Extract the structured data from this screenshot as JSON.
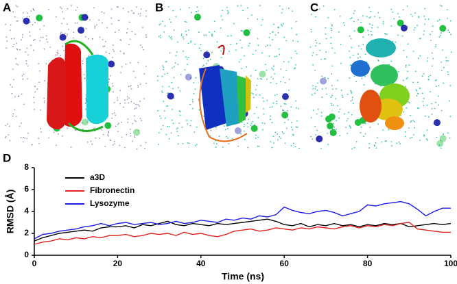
{
  "panel_labels": [
    "A",
    "B",
    "C",
    "D"
  ],
  "chart_data": {
    "type": "line",
    "x_label": "Time (ns)",
    "y_label": "RMSD (Å)",
    "x": [
      0,
      2,
      4,
      6,
      8,
      10,
      12,
      14,
      16,
      18,
      20,
      22,
      24,
      26,
      28,
      30,
      32,
      34,
      36,
      38,
      40,
      42,
      44,
      46,
      48,
      50,
      52,
      54,
      56,
      58,
      60,
      62,
      64,
      66,
      68,
      70,
      72,
      74,
      76,
      78,
      80,
      82,
      84,
      86,
      88,
      90,
      92,
      94,
      96,
      98,
      100
    ],
    "series": [
      {
        "name": "a3D",
        "color": "#000000",
        "values": [
          1.3,
          1.6,
          1.8,
          2.0,
          2.1,
          2.2,
          2.3,
          2.2,
          2.5,
          2.6,
          2.6,
          2.7,
          2.5,
          2.8,
          2.7,
          2.9,
          3.1,
          2.8,
          2.7,
          2.9,
          2.8,
          2.7,
          2.9,
          2.8,
          2.9,
          3.0,
          3.1,
          3.2,
          3.3,
          3.1,
          2.8,
          2.7,
          2.9,
          2.6,
          2.8,
          2.7,
          2.9,
          2.7,
          2.8,
          2.6,
          2.8,
          2.7,
          2.9,
          2.8,
          2.9,
          2.6,
          2.7,
          2.8,
          2.9,
          2.8,
          2.9
        ]
      },
      {
        "name": "Fibronectin",
        "color": "#e0201b",
        "values": [
          1.0,
          1.2,
          1.3,
          1.5,
          1.4,
          1.6,
          1.5,
          1.7,
          1.6,
          1.8,
          1.8,
          1.9,
          1.7,
          1.8,
          2.0,
          1.9,
          2.0,
          1.8,
          2.1,
          1.9,
          2.0,
          1.8,
          1.7,
          1.9,
          2.2,
          2.3,
          2.4,
          2.2,
          2.3,
          2.5,
          2.4,
          2.3,
          2.5,
          2.4,
          2.6,
          2.5,
          2.4,
          2.6,
          2.7,
          2.5,
          2.7,
          2.6,
          2.8,
          2.7,
          2.9,
          3.0,
          2.4,
          2.3,
          2.2,
          2.1,
          2.1
        ]
      },
      {
        "name": "Lysozyme",
        "color": "#1a1ae6",
        "values": [
          1.5,
          1.9,
          2.0,
          2.2,
          2.3,
          2.4,
          2.6,
          2.7,
          2.9,
          2.7,
          2.9,
          3.0,
          2.8,
          2.9,
          3.0,
          2.8,
          2.9,
          3.1,
          2.9,
          3.0,
          3.2,
          3.1,
          3.0,
          3.3,
          3.2,
          3.4,
          3.3,
          3.6,
          3.5,
          3.7,
          4.4,
          4.1,
          3.9,
          3.8,
          4.0,
          4.1,
          3.9,
          3.6,
          3.8,
          4.0,
          4.6,
          4.5,
          4.7,
          4.8,
          4.9,
          4.7,
          4.2,
          3.6,
          4.0,
          4.3,
          4.3
        ]
      }
    ],
    "xlim": [
      0,
      100
    ],
    "xticks": [
      0,
      20,
      40,
      60,
      80,
      100
    ],
    "ylim": [
      0,
      8
    ],
    "yticks": [
      0,
      2,
      4,
      6,
      8
    ],
    "legend": "upper left"
  }
}
